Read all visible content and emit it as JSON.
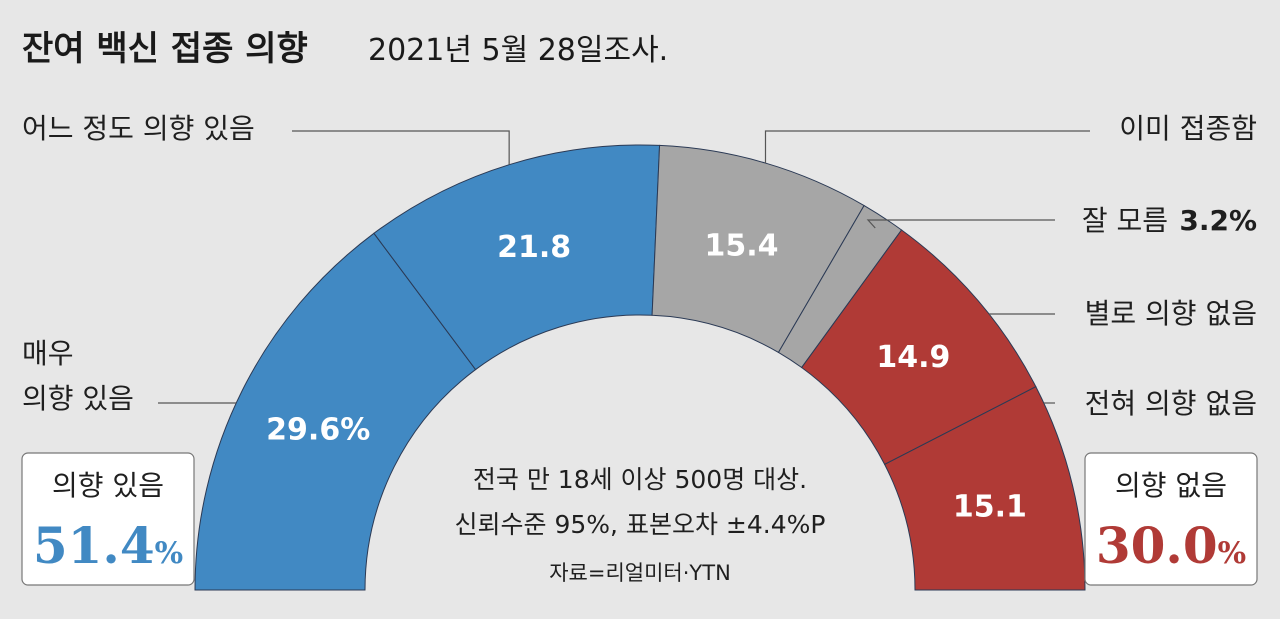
{
  "header": {
    "title": "잔여 백신 접종 의향",
    "subtitle": "2021년 5월 28일조사."
  },
  "colors": {
    "blue": "#4189c3",
    "gray": "#a6a6a6",
    "red": "#b03a36",
    "separator": "#2b3a55",
    "background": "#e7e7e7"
  },
  "chart_data": {
    "type": "pie",
    "style": "half-donut",
    "slices": [
      {
        "label": "매우 의향 있음",
        "label_lines": [
          "매우",
          "의향 있음"
        ],
        "value": 29.6,
        "value_text": "29.6%",
        "color": "#4189c3"
      },
      {
        "label": "어느 정도 의향 있음",
        "label_lines": [
          "어느 정도 의향 있음"
        ],
        "value": 21.8,
        "value_text": "21.8",
        "color": "#4189c3"
      },
      {
        "label": "이미 접종함",
        "label_lines": [
          "이미 접종함"
        ],
        "value": 15.4,
        "value_text": "15.4",
        "color": "#a6a6a6"
      },
      {
        "label": "잘 모름",
        "label_lines": [
          "잘 모름"
        ],
        "value": 3.2,
        "value_text": "3.2%",
        "color": "#a6a6a6"
      },
      {
        "label": "별로 의향 없음",
        "label_lines": [
          "별로 의향 없음"
        ],
        "value": 14.9,
        "value_text": "14.9",
        "color": "#b03a36"
      },
      {
        "label": "전혀 의향 없음",
        "label_lines": [
          "전혀 의향 없음"
        ],
        "value": 15.1,
        "value_text": "15.1",
        "color": "#b03a36"
      }
    ],
    "unit": "%",
    "totals": {
      "positive": {
        "label": "의향 있음",
        "value": "51.4",
        "unit": "%"
      },
      "negative": {
        "label": "의향 없음",
        "value": "30.0",
        "unit": "%"
      }
    }
  },
  "notes": {
    "line1": "전국 만 18세 이상 500명 대상.",
    "line2": "신뢰수준 95%, 표본오차 ±4.4%P",
    "source": "자료=리얼미터·YTN"
  }
}
